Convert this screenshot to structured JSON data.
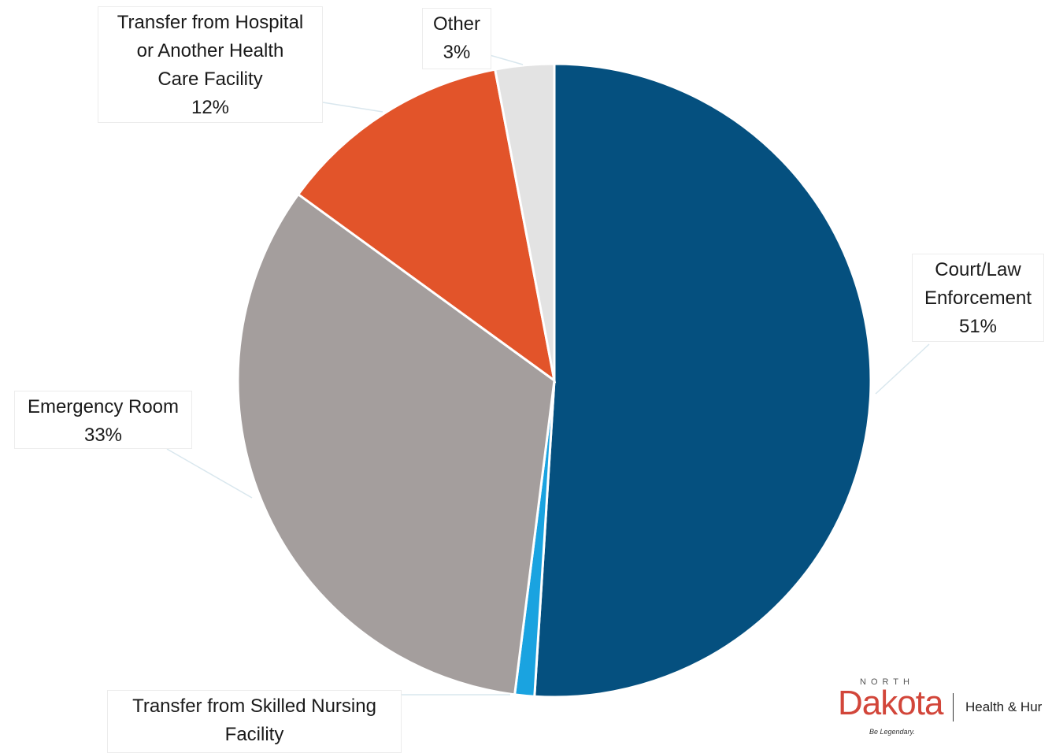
{
  "chart_data": {
    "type": "pie",
    "start_angle_deg": 0,
    "direction": "clockwise",
    "slices": [
      {
        "name": "Court/Law Enforcement",
        "value": 51,
        "label_lines": [
          "Court/Law",
          "Enforcement",
          "51%"
        ],
        "color": "#05507f"
      },
      {
        "name": "Transfer from Skilled Nursing Facility",
        "value": 1,
        "label_lines": [
          "Transfer from Skilled Nursing",
          "Facility"
        ],
        "color": "#1aa3e0"
      },
      {
        "name": "Emergency Room",
        "value": 33,
        "label_lines": [
          "Emergency Room",
          "33%"
        ],
        "color": "#a49e9d"
      },
      {
        "name": "Transfer from Hospital or Another Health Care Facility",
        "value": 12,
        "label_lines": [
          "Transfer from Hospital",
          "or Another Health",
          "Care Facility",
          "12%"
        ],
        "color": "#e2542a"
      },
      {
        "name": "Other",
        "value": 3,
        "label_lines": [
          "Other",
          "3%"
        ],
        "color": "#e3e3e3"
      }
    ]
  },
  "logo": {
    "north": "NORTH",
    "dakota": "Dakota",
    "tagline": "Be Legendary.",
    "department": "Health & Hur"
  }
}
